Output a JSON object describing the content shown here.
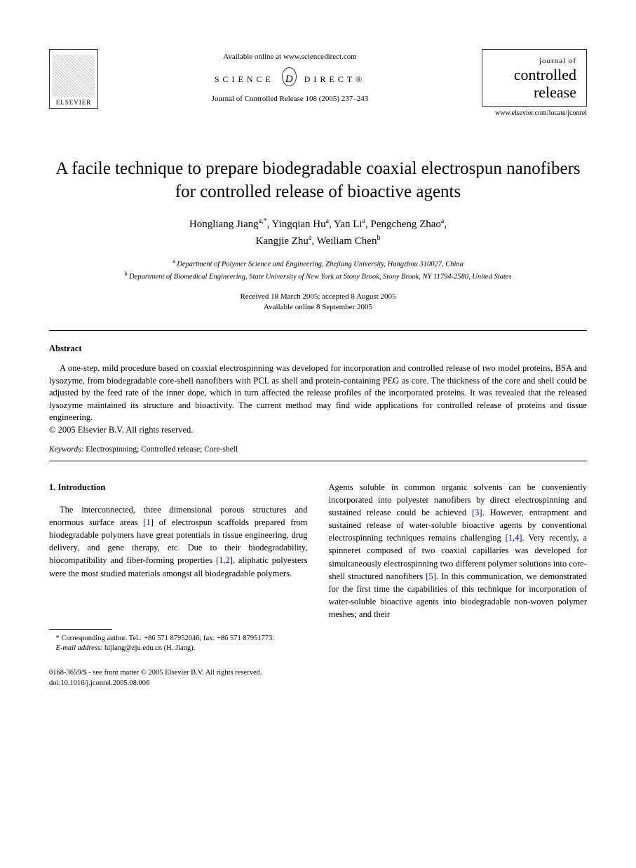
{
  "header": {
    "elsevier_label": "ELSEVIER",
    "available_online": "Available online at www.sciencedirect.com",
    "scidirect_left": "SCIENCE",
    "scidirect_d": "d",
    "scidirect_right": "DIRECT®",
    "journal_ref": "Journal of Controlled Release 108 (2005) 237–243",
    "journal_box_top": "journal of",
    "journal_box_mid": "controlled",
    "journal_box_bot": "release",
    "journal_url": "www.elsevier.com/locate/jconrel"
  },
  "title": "A facile technique to prepare biodegradable coaxial electrospun nanofibers for controlled release of bioactive agents",
  "authors": {
    "line1": "Hongliang Jiang",
    "a1_sup": "a,*",
    "a2": ", Yingqian Hu",
    "a2_sup": "a",
    "a3": ", Yan Li",
    "a3_sup": "a",
    "a4": ", Pengcheng Zhao",
    "a4_sup": "a",
    "a4_comma": ",",
    "a5": "Kangjie Zhu",
    "a5_sup": "a",
    "a6": ", Weiliam Chen",
    "a6_sup": "b"
  },
  "affiliations": {
    "a_sup": "a",
    "a_text": " Department of Polymer Science and Engineering, Zhejiang University, Hangzhou 310027, China",
    "b_sup": "b",
    "b_text": " Department of Biomedical Engineering, State University of New York at Stony Brook, Stony Brook, NY 11794-2580, United States"
  },
  "dates": {
    "received": "Received 18 March 2005; accepted 8 August 2005",
    "available": "Available online 8 September 2005"
  },
  "abstract": {
    "heading": "Abstract",
    "text": "A one-step, mild procedure based on coaxial electrospinning was developed for incorporation and controlled release of two model proteins, BSA and lysozyme, from biodegradable core-shell nanofibers with PCL as shell and protein-containing PEG as core. The thickness of the core and shell could be adjusted by the feed rate of the inner dope, which in turn affected the release profiles of the incorporated proteins. It was revealed that the released lysozyme maintained its structure and bioactivity. The current method may find wide applications for controlled release of proteins and tissue engineering.",
    "copyright": "© 2005 Elsevier B.V. All rights reserved."
  },
  "keywords": {
    "label": "Keywords:",
    "text": " Electrospinning; Controlled release; Core-shell"
  },
  "section1": {
    "heading": "1. Introduction",
    "col1_p1_a": "The interconnected, three dimensional porous structures and enormous surface areas ",
    "col1_ref1": "[1]",
    "col1_p1_b": " of electrospun scaffolds prepared from biodegradable polymers have great potentials in tissue engineering, drug delivery, and gene therapy, etc. Due to their biodegradability, biocompatibility and fiber-forming properties ",
    "col1_ref2": "[1,2]",
    "col1_p1_c": ", aliphatic polyesters were the most studied materials amongst all biodegradable polymers.",
    "col2_a": "Agents soluble in common organic solvents can be conveniently incorporated into polyester nanofibers by direct electrospinning and sustained release could be achieved ",
    "col2_ref3": "[3]",
    "col2_b": ". However, entrapment and sustained release of water-soluble bioactive agents by conventional electrospinning techniques remains challenging ",
    "col2_ref14": "[1,4]",
    "col2_c": ". Very recently, a spinneret composed of two coaxial capillaries was developed for simultaneously electrospinning two different polymer solutions into core-shell structured nanofibers ",
    "col2_ref5": "[5]",
    "col2_d": ". In this communication, we demonstrated for the first time the capabilities of this technique for incorporation of water-soluble bioactive agents into biodegradable non-woven polymer meshes; and their"
  },
  "footnote": {
    "corr": "* Corresponding author. Tel.: +86 571 87952046; fax: +86 571 87951773.",
    "email_label": "E-mail address:",
    "email": " hljiang@zju.edu.cn (H. Jiang)."
  },
  "footer": {
    "issn": "0168-3659/$ - see front matter © 2005 Elsevier B.V. All rights reserved.",
    "doi": "doi:10.1016/j.jconrel.2005.08.006"
  }
}
